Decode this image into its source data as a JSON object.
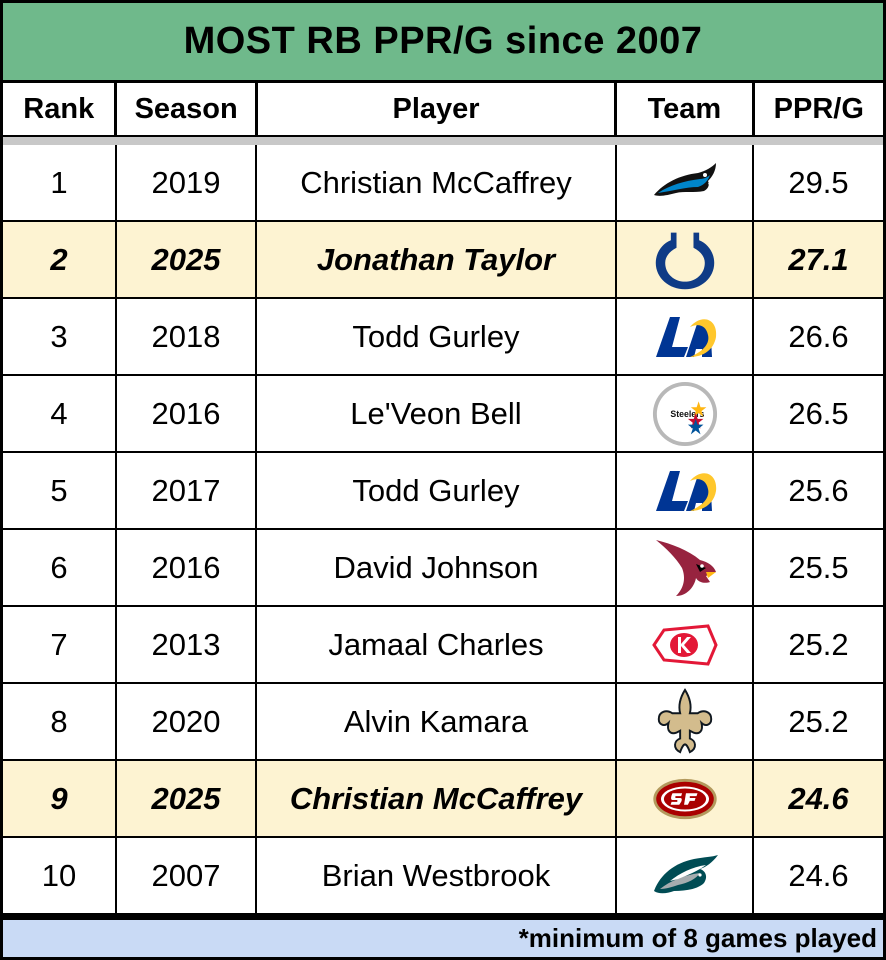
{
  "title": "MOST RB PPR/G since 2007",
  "headers": {
    "rank": "Rank",
    "season": "Season",
    "player": "Player",
    "team": "Team",
    "ppr": "PPR/G"
  },
  "rows": [
    {
      "rank": "1",
      "season": "2019",
      "player": "Christian McCaffrey",
      "team_icon": "panthers-logo-icon",
      "ppr": "29.5",
      "highlight": false
    },
    {
      "rank": "2",
      "season": "2025",
      "player": "Jonathan Taylor",
      "team_icon": "colts-logo-icon",
      "ppr": "27.1",
      "highlight": true
    },
    {
      "rank": "3",
      "season": "2018",
      "player": "Todd Gurley",
      "team_icon": "rams-logo-icon",
      "ppr": "26.6",
      "highlight": false
    },
    {
      "rank": "4",
      "season": "2016",
      "player": "Le'Veon Bell",
      "team_icon": "steelers-logo-icon",
      "team_logo_text": "Steelers",
      "ppr": "26.5",
      "highlight": false
    },
    {
      "rank": "5",
      "season": "2017",
      "player": "Todd Gurley",
      "team_icon": "rams-logo-icon",
      "ppr": "25.6",
      "highlight": false
    },
    {
      "rank": "6",
      "season": "2016",
      "player": "David Johnson",
      "team_icon": "cardinals-logo-icon",
      "ppr": "25.5",
      "highlight": false
    },
    {
      "rank": "7",
      "season": "2013",
      "player": "Jamaal Charles",
      "team_icon": "chiefs-logo-icon",
      "ppr": "25.2",
      "highlight": false
    },
    {
      "rank": "8",
      "season": "2020",
      "player": "Alvin Kamara",
      "team_icon": "saints-logo-icon",
      "ppr": "25.2",
      "highlight": false
    },
    {
      "rank": "9",
      "season": "2025",
      "player": "Christian McCaffrey",
      "team_icon": "49ers-logo-icon",
      "ppr": "24.6",
      "highlight": true
    },
    {
      "rank": "10",
      "season": "2007",
      "player": "Brian Westbrook",
      "team_icon": "eagles-logo-icon",
      "ppr": "24.6",
      "highlight": false
    }
  ],
  "footer_note": "*minimum of 8 games played",
  "colors": {
    "title_bg": "#6fb98b",
    "highlight_bg": "#fdf3d2",
    "footer_bg": "#c9daf5"
  }
}
